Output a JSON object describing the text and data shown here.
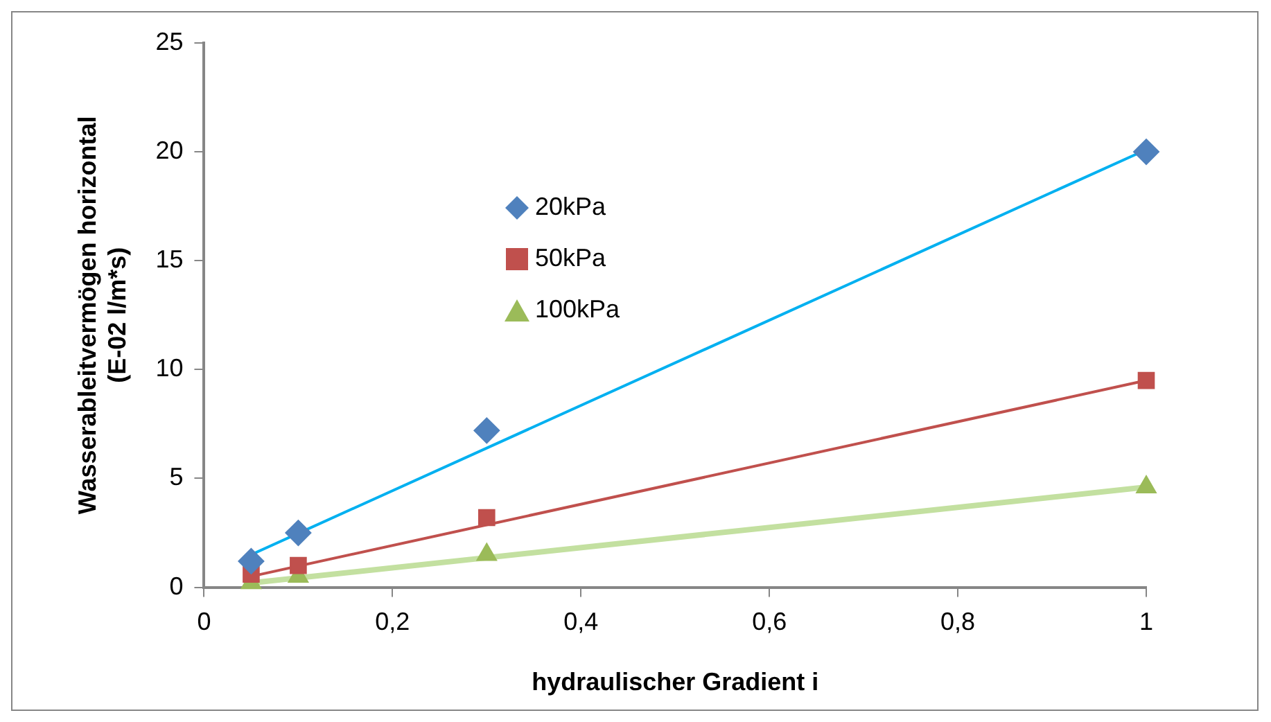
{
  "chart_data": {
    "type": "scatter",
    "xlabel": "hydraulischer Gradient i",
    "ylabel": "Wasserableitvermögen horizontal\n(E-02 l/m*s)",
    "xlim": [
      0,
      1
    ],
    "xticks": [
      {
        "value": 0,
        "label": "0"
      },
      {
        "value": 0.2,
        "label": "0,2"
      },
      {
        "value": 0.4,
        "label": "0,4"
      },
      {
        "value": 0.6,
        "label": "0,6"
      },
      {
        "value": 0.8,
        "label": "0,8"
      },
      {
        "value": 1,
        "label": "1"
      }
    ],
    "ylim": [
      0,
      25
    ],
    "yticks": [
      0,
      5,
      10,
      15,
      20,
      25
    ],
    "grid": false,
    "legend": "top left",
    "series": [
      {
        "name": "20kPa",
        "type": "scatter",
        "marker": "diamond",
        "color": "#4f81bd",
        "x": [
          0.05,
          0.1,
          0.3,
          1
        ],
        "values": [
          1.2,
          2.5,
          7.2,
          20
        ]
      },
      {
        "name": "50kPa",
        "type": "scatter",
        "marker": "square",
        "color": "#c0504d",
        "x": [
          0.05,
          0.1,
          0.3,
          1
        ],
        "values": [
          0.6,
          1.0,
          3.2,
          9.5
        ]
      },
      {
        "name": "100kPa",
        "type": "scatter",
        "marker": "triangle",
        "color": "#9bbb59",
        "x": [
          0.05,
          0.1,
          0.3,
          1
        ],
        "values": [
          0.2,
          0.5,
          1.5,
          4.6
        ]
      },
      {
        "type": "line",
        "marker": "none",
        "color": "#00b0f0",
        "x": [
          0.05,
          1
        ],
        "values": [
          1.5,
          20.1
        ]
      },
      {
        "type": "line",
        "marker": "none",
        "color": "#c0504d",
        "x": [
          0.05,
          1
        ],
        "values": [
          0.5,
          9.5
        ]
      },
      {
        "type": "line",
        "marker": "none",
        "color": "#c3e0a0",
        "x": [
          0.05,
          1
        ],
        "values": [
          0.2,
          4.6
        ]
      }
    ]
  }
}
